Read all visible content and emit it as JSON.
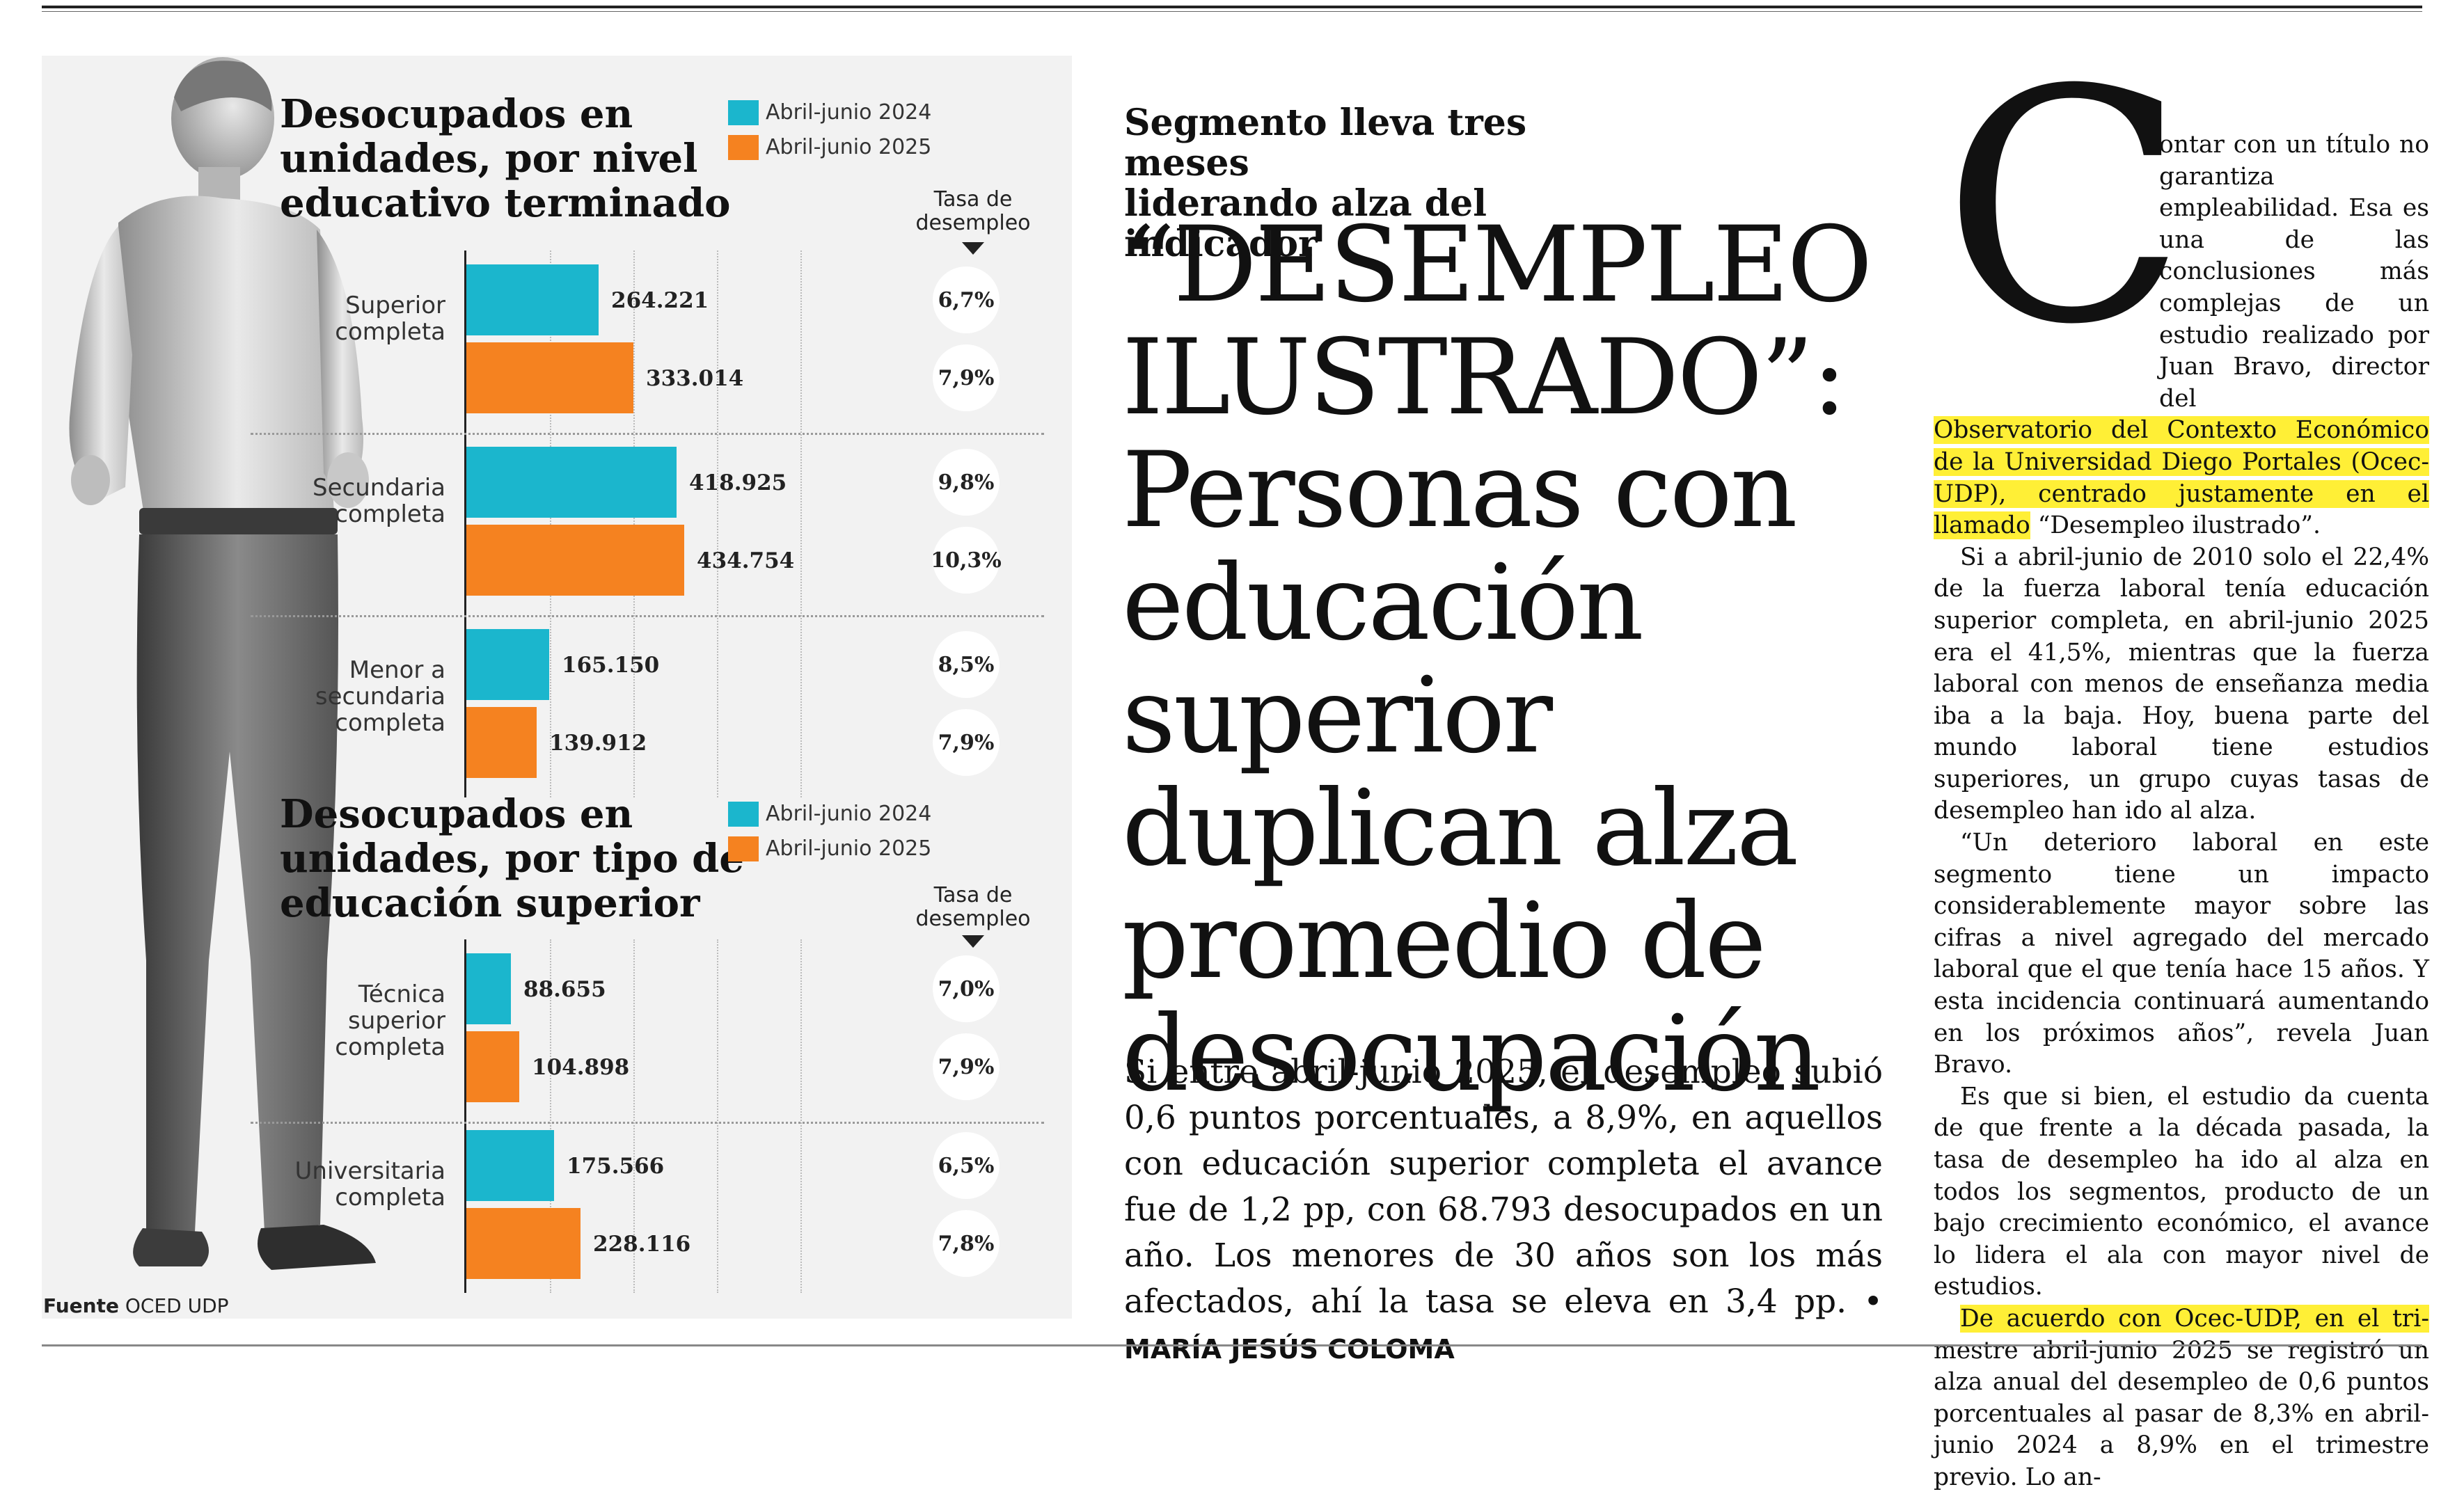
{
  "infographic": {
    "chart1": {
      "title": "Desocupados en\nunidades, por nivel\neducativo terminado",
      "legend": [
        "Abril-junio 2024",
        "Abril-junio 2025"
      ],
      "rate_header": "Tasa de\ndesempleo"
    },
    "chart2": {
      "title": "Desocupados en\nunidades, por tipo de\neducación superior",
      "legend": [
        "Abril-junio 2024",
        "Abril-junio 2025"
      ],
      "rate_header": "Tasa de\ndesempleo"
    },
    "source_label": "Fuente",
    "source_value": "OCED UDP",
    "colors": {
      "2024": "#1bb6cd",
      "2025": "#f58220",
      "illustration": "man-standing-figure"
    }
  },
  "chart_data": [
    {
      "type": "bar",
      "orientation": "horizontal",
      "title": "Desocupados en\nunidades, por nivel\neducativo terminado",
      "categories": [
        "Superior\ncompleta",
        "Secundaria\ncompleta",
        "Menor a\nsecundaria\ncompleta"
      ],
      "series": [
        {
          "name": "Abril-junio 2024",
          "values": [
            264221,
            418925,
            165150
          ],
          "labels": [
            "264.221",
            "418.925",
            "165.150"
          ],
          "rates": [
            "6,7%",
            "9,8%",
            "8,5%"
          ]
        },
        {
          "name": "Abril-junio 2025",
          "values": [
            333014,
            434754,
            139912
          ],
          "labels": [
            "333.014",
            "434.754",
            "139.912"
          ],
          "rates": [
            "7,9%",
            "10,3%",
            "7,9%"
          ]
        }
      ],
      "xlim": [
        0,
        550000
      ]
    },
    {
      "type": "bar",
      "orientation": "horizontal",
      "title": "Desocupados en\nunidades, por tipo de\neducación superior",
      "categories": [
        "Técnica\nsuperior\ncompleta",
        "Universitaria\ncompleta"
      ],
      "series": [
        {
          "name": "Abril-junio 2024",
          "values": [
            88655,
            175566
          ],
          "labels": [
            "88.655",
            "175.566"
          ],
          "rates": [
            "7,0%",
            "6,5%"
          ]
        },
        {
          "name": "Abril-junio 2025",
          "values": [
            104898,
            228116
          ],
          "labels": [
            "104.898",
            "228.116"
          ],
          "rates": [
            "7,9%",
            "7,8%"
          ]
        }
      ],
      "xlim": [
        0,
        550000
      ]
    }
  ],
  "article": {
    "kicker": "Segmento lleva tres meses\nliderando alza del indicador",
    "headline": "“DESEMPLEO ILUSTRADO”: Personas con educación superior duplican alza promedio de desocupación",
    "headline_upper": "“DESEMPLEO\nILUSTRADO”:",
    "headline_rest": "Personas con educación superior duplican alza promedio de desocupación",
    "lead": "Si entre abril-junio 2025, el desempleo subió 0,6 puntos porcentuales, a 8,9%, en aquellos con educación superior completa el avance fue de 1,2 pp, con 68.793 desocupados en un año. Los menores de 30 años son los más afectados, ahí la tasa se eleva en 3,4 pp. • ",
    "byline": "MARÍA JESÚS COLOMA",
    "dropcap": "C",
    "p1_start": "ontar con un título no garantiza empleabilidad. Esa es una de las conclusiones más complejas de un estudio realizado por Juan Bravo, director del",
    "p1_highlight": "Observatorio del Contexto Económico de la Universidad Diego Portales (Ocec-UDP), centrado justamente en el llamado",
    "p1_end": "“Desempleo ilustrado”.",
    "p2": "Si a abril-junio de 2010 solo el 22,4% de la fuerza laboral tenía educación superior completa, en abril-junio 2025 era el 41,5%, mientras que la fuerza laboral con menos de enseñanza media iba a la baja. Hoy, buena parte del mundo laboral tiene estudios superiores, un grupo cuyas tasas de desempleo han ido al alza.",
    "p3": "“Un deterioro laboral en este segmento tiene un impacto considerablemente mayor sobre las cifras a nivel agregado del mercado laboral que el que tenía hace 15 años. Y esta incidencia continuará aumentando en los próximos años”, revela Juan Bravo.",
    "p4": "Es que si bien, el estudio da cuenta de que frente a la década pasada, la tasa de desempleo ha ido al alza en todos los segmentos, producto de un bajo crecimiento económico, el avance lo lidera el ala con mayor nivel de estudios.",
    "p5_highlight": "De acuerdo con Ocec-UDP, en el tri-",
    "p5_rest": "mestre abril-junio 2025 se registró un alza anual del desempleo de 0,6 puntos porcentuales al pasar de 8,3% en abril-junio 2024 a 8,9% en el trimestre previo. Lo an-"
  }
}
